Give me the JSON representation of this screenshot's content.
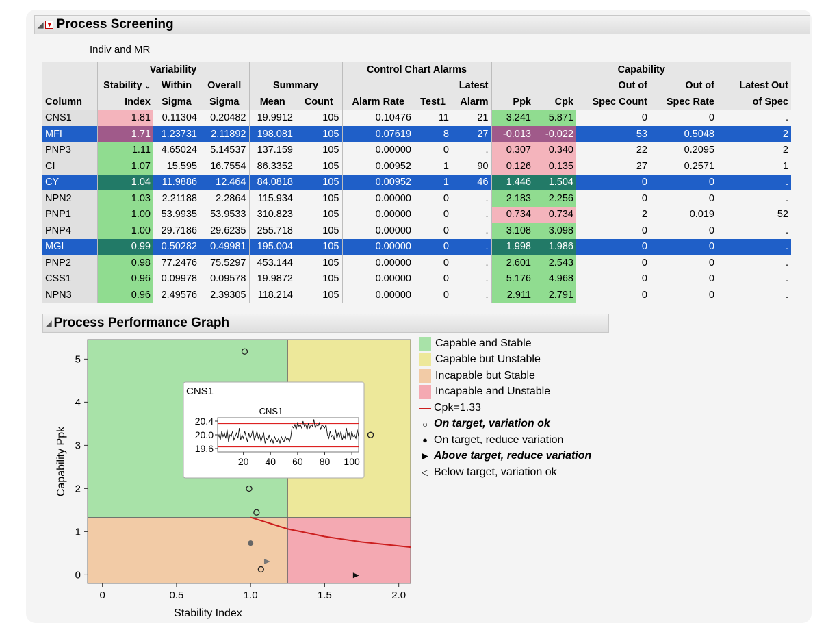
{
  "screening": {
    "title": "Process Screening",
    "subtitle": "Indiv and MR"
  },
  "table": {
    "groups": {
      "variability": "Variability",
      "alarms": "Control Chart Alarms",
      "capability": "Capability",
      "summary": "Summary"
    },
    "headers": {
      "column": "Column",
      "stability_top": "Stability",
      "stability_bottom": "Index",
      "within_top": "Within",
      "within_bottom": "Sigma",
      "overall_top": "Overall",
      "overall_bottom": "Sigma",
      "mean": "Mean",
      "count": "Count",
      "alarm_rate": "Alarm Rate",
      "test1": "Test1",
      "latest_top": "Latest",
      "latest_bottom": "Alarm",
      "ppk": "Ppk",
      "cpk": "Cpk",
      "out_count_top": "Out of",
      "out_count_bottom": "Spec Count",
      "out_rate_top": "Out of",
      "out_rate_bottom": "Spec Rate",
      "latest_out_top": "Latest Out",
      "latest_out_bottom": "of Spec"
    },
    "rows": [
      {
        "name": "CNS1",
        "stability": "1.81",
        "within": "0.11304",
        "overall": "0.20482",
        "mean": "19.9912",
        "count": "105",
        "alarm_rate": "0.10476",
        "test1": "11",
        "latest": "21",
        "ppk": "3.241",
        "cpk": "5.871",
        "out_count": "0",
        "out_rate": "0",
        "latest_out": ".",
        "selected": false,
        "stab_color": "p",
        "ppk_color": "g",
        "cpk_color": "g"
      },
      {
        "name": "MFI",
        "stability": "1.71",
        "within": "1.23731",
        "overall": "2.11892",
        "mean": "198.081",
        "count": "105",
        "alarm_rate": "0.07619",
        "test1": "8",
        "latest": "27",
        "ppk": "-0.013",
        "cpk": "-0.022",
        "out_count": "53",
        "out_rate": "0.5048",
        "latest_out": "2",
        "selected": true,
        "stab_color": "p",
        "ppk_color": "p",
        "cpk_color": "p"
      },
      {
        "name": "PNP3",
        "stability": "1.11",
        "within": "4.65024",
        "overall": "5.14537",
        "mean": "137.159",
        "count": "105",
        "alarm_rate": "0.00000",
        "test1": "0",
        "latest": ".",
        "ppk": "0.307",
        "cpk": "0.340",
        "out_count": "22",
        "out_rate": "0.2095",
        "latest_out": "2",
        "selected": false,
        "stab_color": "g",
        "ppk_color": "p",
        "cpk_color": "p"
      },
      {
        "name": "CI",
        "stability": "1.07",
        "within": "15.595",
        "overall": "16.7554",
        "mean": "86.3352",
        "count": "105",
        "alarm_rate": "0.00952",
        "test1": "1",
        "latest": "90",
        "ppk": "0.126",
        "cpk": "0.135",
        "out_count": "27",
        "out_rate": "0.2571",
        "latest_out": "1",
        "selected": false,
        "stab_color": "g",
        "ppk_color": "p",
        "cpk_color": "p"
      },
      {
        "name": "CY",
        "stability": "1.04",
        "within": "11.9886",
        "overall": "12.464",
        "mean": "84.0818",
        "count": "105",
        "alarm_rate": "0.00952",
        "test1": "1",
        "latest": "46",
        "ppk": "1.446",
        "cpk": "1.504",
        "out_count": "0",
        "out_rate": "0",
        "latest_out": ".",
        "selected": true,
        "stab_color": "g",
        "ppk_color": "g",
        "cpk_color": "g"
      },
      {
        "name": "NPN2",
        "stability": "1.03",
        "within": "2.21188",
        "overall": "2.2864",
        "mean": "115.934",
        "count": "105",
        "alarm_rate": "0.00000",
        "test1": "0",
        "latest": ".",
        "ppk": "2.183",
        "cpk": "2.256",
        "out_count": "0",
        "out_rate": "0",
        "latest_out": ".",
        "selected": false,
        "stab_color": "g",
        "ppk_color": "g",
        "cpk_color": "g"
      },
      {
        "name": "PNP1",
        "stability": "1.00",
        "within": "53.9935",
        "overall": "53.9533",
        "mean": "310.823",
        "count": "105",
        "alarm_rate": "0.00000",
        "test1": "0",
        "latest": ".",
        "ppk": "0.734",
        "cpk": "0.734",
        "out_count": "2",
        "out_rate": "0.019",
        "latest_out": "52",
        "selected": false,
        "stab_color": "g",
        "ppk_color": "p",
        "cpk_color": "p"
      },
      {
        "name": "PNP4",
        "stability": "1.00",
        "within": "29.7186",
        "overall": "29.6235",
        "mean": "255.718",
        "count": "105",
        "alarm_rate": "0.00000",
        "test1": "0",
        "latest": ".",
        "ppk": "3.108",
        "cpk": "3.098",
        "out_count": "0",
        "out_rate": "0",
        "latest_out": ".",
        "selected": false,
        "stab_color": "g",
        "ppk_color": "g",
        "cpk_color": "g"
      },
      {
        "name": "MGI",
        "stability": "0.99",
        "within": "0.50282",
        "overall": "0.49981",
        "mean": "195.004",
        "count": "105",
        "alarm_rate": "0.00000",
        "test1": "0",
        "latest": ".",
        "ppk": "1.998",
        "cpk": "1.986",
        "out_count": "0",
        "out_rate": "0",
        "latest_out": ".",
        "selected": true,
        "stab_color": "g",
        "ppk_color": "g",
        "cpk_color": "g"
      },
      {
        "name": "PNP2",
        "stability": "0.98",
        "within": "77.2476",
        "overall": "75.5297",
        "mean": "453.144",
        "count": "105",
        "alarm_rate": "0.00000",
        "test1": "0",
        "latest": ".",
        "ppk": "2.601",
        "cpk": "2.543",
        "out_count": "0",
        "out_rate": "0",
        "latest_out": ".",
        "selected": false,
        "stab_color": "g",
        "ppk_color": "g",
        "cpk_color": "g"
      },
      {
        "name": "CSS1",
        "stability": "0.96",
        "within": "0.09978",
        "overall": "0.09578",
        "mean": "19.9872",
        "count": "105",
        "alarm_rate": "0.00000",
        "test1": "0",
        "latest": ".",
        "ppk": "5.176",
        "cpk": "4.968",
        "out_count": "0",
        "out_rate": "0",
        "latest_out": ".",
        "selected": false,
        "stab_color": "g",
        "ppk_color": "g",
        "cpk_color": "g"
      },
      {
        "name": "NPN3",
        "stability": "0.96",
        "within": "2.49576",
        "overall": "2.39305",
        "mean": "118.214",
        "count": "105",
        "alarm_rate": "0.00000",
        "test1": "0",
        "latest": ".",
        "ppk": "2.911",
        "cpk": "2.791",
        "out_count": "0",
        "out_rate": "0",
        "latest_out": ".",
        "selected": false,
        "stab_color": "g",
        "ppk_color": "g",
        "cpk_color": "g"
      }
    ]
  },
  "graph": {
    "title": "Process Performance Graph",
    "legend": {
      "capable_stable": "Capable and Stable",
      "capable_unstable": "Capable but Unstable",
      "incapable_stable": "Incapable but Stable",
      "incapable_unstable": "Incapable and Unstable",
      "cpk_line": "Cpk=1.33",
      "on_target_ok": "On target, variation ok",
      "on_target_reduce": "On target, reduce variation",
      "above_target": "Above target, reduce variation",
      "below_target": "Below target, variation ok"
    },
    "colors": {
      "capable_stable": "#a8e2a8",
      "capable_unstable": "#ede89a",
      "incapable_stable": "#f2cba6",
      "incapable_unstable": "#f4a9b2",
      "cpk_line": "#cc1f1f"
    }
  },
  "chart_data": [
    {
      "type": "scatter",
      "xlabel": "Stability Index",
      "ylabel": "Capability Ppk",
      "xlim": [
        -0.1,
        2.08
      ],
      "ylim": [
        -0.2,
        5.45
      ],
      "x_ticks": [
        "0",
        "0.5",
        "1.0",
        "1.5",
        "2.0"
      ],
      "y_ticks": [
        "0",
        "1",
        "2",
        "3",
        "4",
        "5"
      ],
      "threshold_x": 1.25,
      "threshold_y": 1.33,
      "points": [
        {
          "x": 0.96,
          "y": 5.176,
          "marker": "open-circle"
        },
        {
          "x": 1.81,
          "y": 3.241,
          "marker": "open-circle"
        },
        {
          "x": 0.99,
          "y": 1.998,
          "marker": "open-circle"
        },
        {
          "x": 1.04,
          "y": 1.446,
          "marker": "open-circle"
        },
        {
          "x": 1.0,
          "y": 0.734,
          "marker": "filled-circle"
        },
        {
          "x": 1.11,
          "y": 0.307,
          "marker": "triangle-right"
        },
        {
          "x": 1.07,
          "y": 0.126,
          "marker": "open-circle"
        },
        {
          "x": 1.71,
          "y": -0.013,
          "marker": "triangle-right-black"
        }
      ],
      "cpk_curve": [
        [
          1.0,
          1.33
        ],
        [
          1.25,
          1.064
        ],
        [
          1.5,
          0.887
        ],
        [
          1.75,
          0.76
        ],
        [
          2.08,
          0.64
        ]
      ]
    },
    {
      "type": "line",
      "title": "CNS1",
      "panel_label": "CNS1",
      "xlim": [
        1,
        105
      ],
      "ylim": [
        19.5,
        20.5
      ],
      "x_ticks": [
        "20",
        "40",
        "60",
        "80",
        "100"
      ],
      "y_ticks": [
        "20.4",
        "20.0",
        "19.6"
      ],
      "limits": [
        20.33,
        19.65
      ],
      "values": [
        19.9,
        20.0,
        19.85,
        20.1,
        19.95,
        20.05,
        19.9,
        20.15,
        19.8,
        20.0,
        19.95,
        20.1,
        19.85,
        19.95,
        20.05,
        19.9,
        20.2,
        19.85,
        20.0,
        19.9,
        20.1,
        19.95,
        19.8,
        20.05,
        19.9,
        20.0,
        20.15,
        19.85,
        19.95,
        20.1,
        19.9,
        20.0,
        19.8,
        19.95,
        20.05,
        19.75,
        19.9,
        19.85,
        20.0,
        19.8,
        19.9,
        19.75,
        19.95,
        19.85,
        19.8,
        19.9,
        19.75,
        19.95,
        19.85,
        19.8,
        19.95,
        19.85,
        19.9,
        19.8,
        19.95,
        20.25,
        20.2,
        20.3,
        20.15,
        20.35,
        20.25,
        20.3,
        20.2,
        20.4,
        20.25,
        20.3,
        20.15,
        20.35,
        20.2,
        20.3,
        20.25,
        20.45,
        20.2,
        20.3,
        20.25,
        20.35,
        20.15,
        20.3,
        20.25,
        20.2,
        20.3,
        20.0,
        19.9,
        20.1,
        19.95,
        20.0,
        19.85,
        20.15,
        19.9,
        20.05,
        19.95,
        20.1,
        19.85,
        20.0,
        19.9,
        20.2,
        19.95,
        20.05,
        19.85,
        20.1,
        19.95,
        20.0,
        19.9,
        20.15,
        19.95
      ]
    }
  ]
}
